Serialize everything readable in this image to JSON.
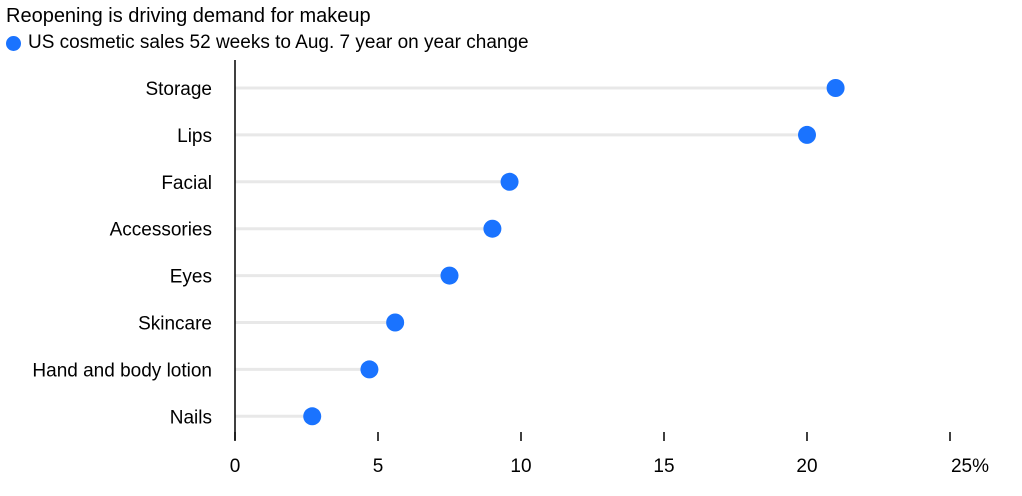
{
  "chart_data": {
    "type": "scatter",
    "title": "Reopening is driving demand for makeup",
    "legend": "US cosmetic sales 52 weeks to Aug. 7 year on year change",
    "color": "#1a73ff",
    "categories": [
      "Storage",
      "Lips",
      "Facial",
      "Accessories",
      "Eyes",
      "Skincare",
      "Hand and body lotion",
      "Nails"
    ],
    "values": [
      21.0,
      20.0,
      9.6,
      9.0,
      7.5,
      5.6,
      4.7,
      2.7
    ],
    "xlim": [
      0,
      25
    ],
    "xticks": [
      0,
      5,
      10,
      15,
      20,
      25
    ],
    "xtick_labels": [
      "0",
      "5",
      "10",
      "15",
      "20",
      "25%"
    ]
  }
}
